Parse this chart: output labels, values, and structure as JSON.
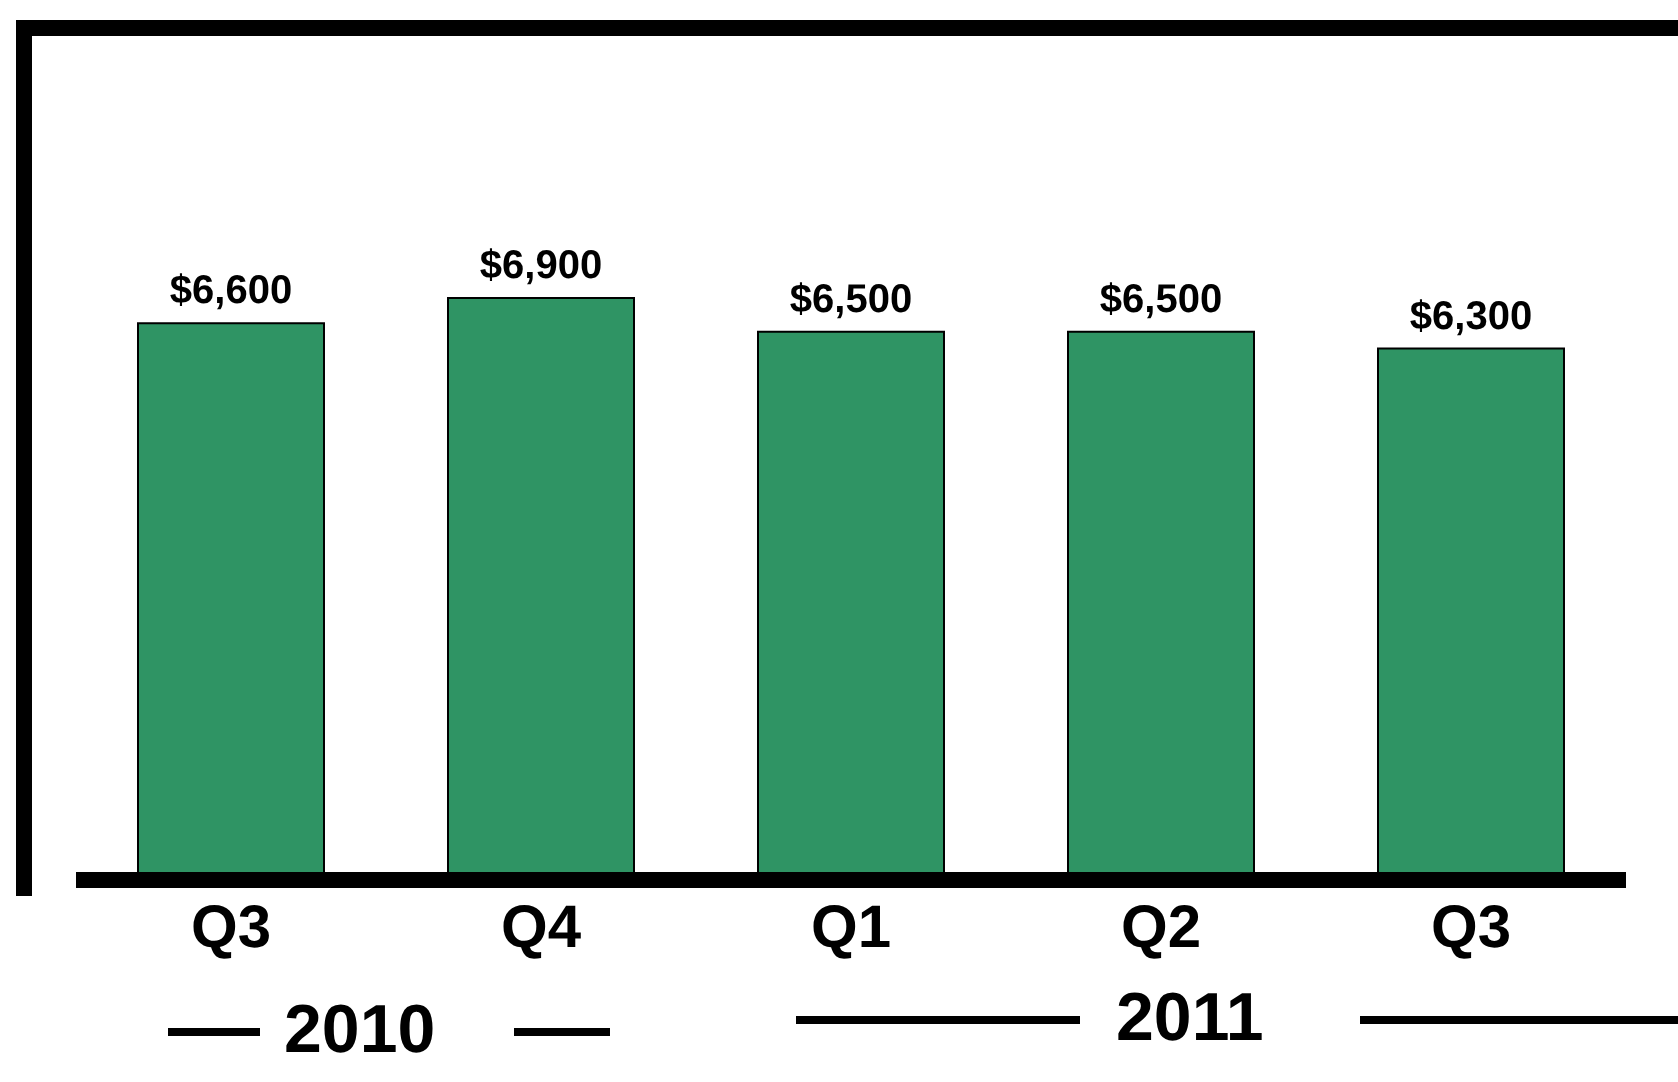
{
  "chart_data": {
    "type": "bar",
    "categories": [
      "Q3",
      "Q4",
      "Q1",
      "Q2",
      "Q3"
    ],
    "values": [
      6600,
      6900,
      6500,
      6500,
      6300
    ],
    "color": "#2f9464",
    "tick_labels": "x",
    "value_labels": [
      "$6,600",
      "$6,900",
      "$6,500",
      "$6,500",
      "$6,300"
    ],
    "annotations": [
      "2010",
      "2011"
    ]
  }
}
